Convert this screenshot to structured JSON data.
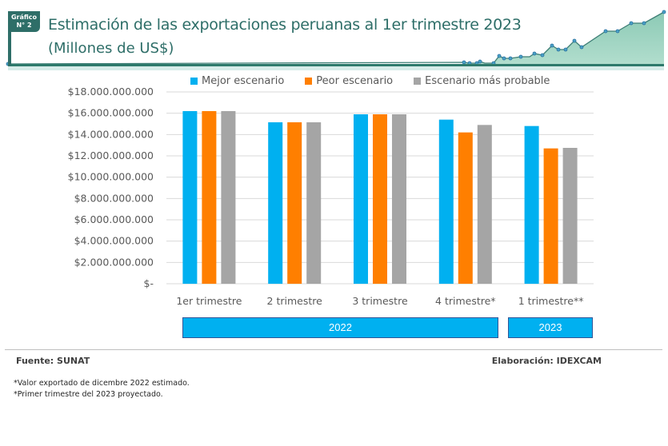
{
  "header": {
    "badge_line1": "Gráfico",
    "badge_line2": "N° 2",
    "title": "Estimación de las exportaciones peruanas al 1er trimestre 2023",
    "subtitle": "(Millones de US$)"
  },
  "colors": {
    "best": "#00b0f0",
    "worst": "#ff7f00",
    "likely": "#a5a5a5",
    "header_accent": "#2e6e68",
    "year_box": "#00b0f0"
  },
  "chart_data": {
    "type": "bar",
    "title": "Estimación de las exportaciones peruanas al 1er trimestre 2023",
    "subtitle": "(Millones de US$)",
    "xlabel": "",
    "ylabel": "",
    "categories": [
      "1er trimestre",
      "2 trimestre",
      "3 trimestre",
      "4 trimestre*",
      "1 trimestre**"
    ],
    "groups": [
      {
        "label": "2022",
        "categories": [
          "1er trimestre",
          "2 trimestre",
          "3 trimestre",
          "4 trimestre*"
        ]
      },
      {
        "label": "2023",
        "categories": [
          "1 trimestre**"
        ]
      }
    ],
    "series": [
      {
        "name": "Mejor escenario",
        "color": "#00b0f0",
        "values": [
          16200000000,
          15150000000,
          15900000000,
          15400000000,
          14800000000
        ]
      },
      {
        "name": "Peor escenario",
        "color": "#ff7f00",
        "values": [
          16200000000,
          15150000000,
          15900000000,
          14200000000,
          12700000000
        ]
      },
      {
        "name": "Escenario más probable",
        "color": "#a5a5a5",
        "values": [
          16200000000,
          15150000000,
          15900000000,
          14900000000,
          12750000000
        ]
      }
    ],
    "ylim": [
      0,
      18000000000
    ],
    "yticks": [
      0,
      2000000000,
      4000000000,
      6000000000,
      8000000000,
      10000000000,
      12000000000,
      14000000000,
      16000000000,
      18000000000
    ],
    "ytick_labels": [
      "$-",
      "$2.000.000.000",
      "$4.000.000.000",
      "$6.000.000.000",
      "$8.000.000.000",
      "$10.000.000.000",
      "$12.000.000.000",
      "$14.000.000.000",
      "$16.000.000.000",
      "$18.000.000.000"
    ],
    "grid": true,
    "legend_position": "top"
  },
  "footer": {
    "source": "Fuente: SUNAT",
    "credit": "Elaboración: IDEXCAM",
    "notes": [
      "*Valor exportado de dicembre 2022 estimado.",
      "*Primer trimestre del 2023 proyectado."
    ]
  }
}
